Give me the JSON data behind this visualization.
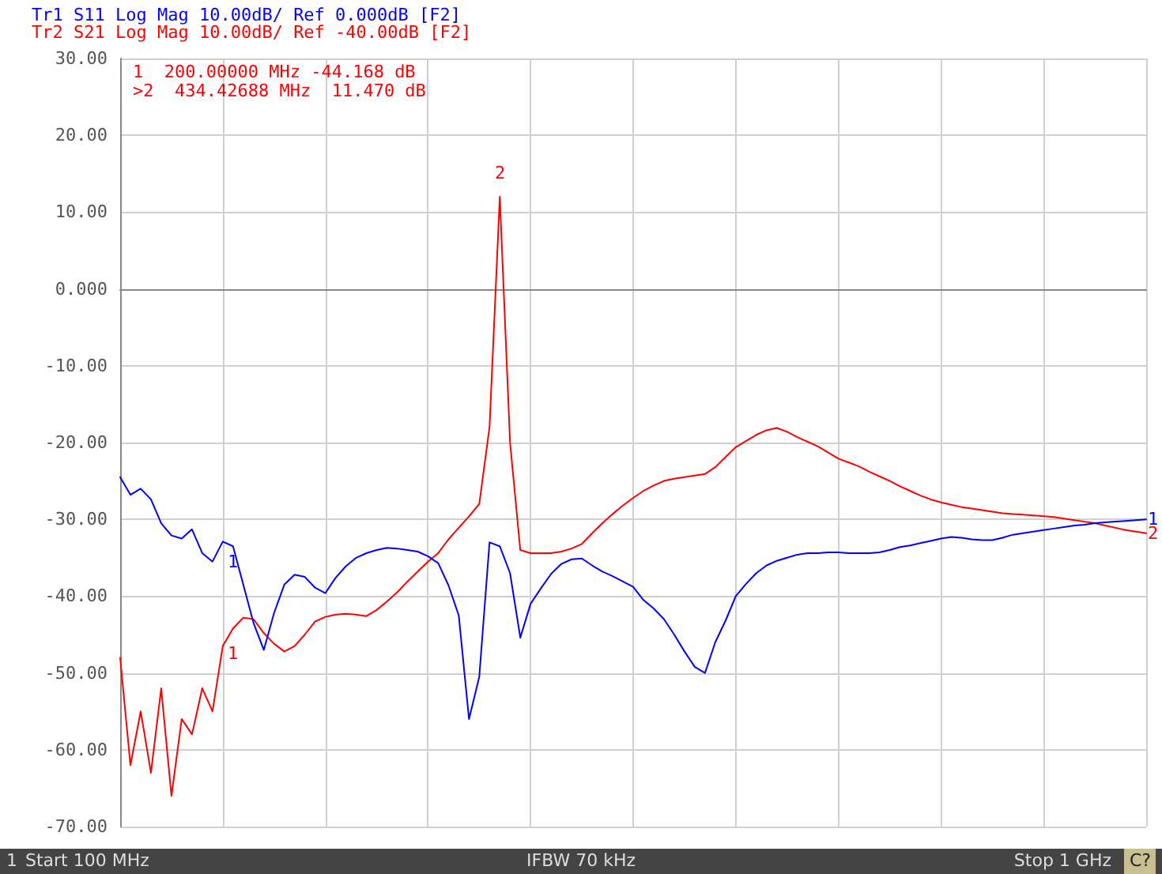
{
  "chart_data": {
    "type": "line",
    "title": "Tr1 S11 Log Mag 10.00dB/ Ref 0.000dB [F2]",
    "subtitle": "Tr2 S21 Log Mag 10.00dB/ Ref -40.00dB [F2]",
    "categories": [
      null,
      null,
      null,
      null,
      null,
      null,
      null,
      null,
      null,
      null,
      null,
      null,
      null,
      null,
      null,
      null,
      null,
      null,
      null,
      null,
      null,
      null,
      null,
      null,
      null,
      null,
      null,
      null,
      null,
      null,
      null,
      null,
      null,
      null,
      null,
      null,
      null,
      null,
      null,
      null,
      null,
      null,
      null,
      null,
      null,
      null,
      null,
      null,
      null,
      null,
      null,
      null,
      null,
      null,
      null,
      null,
      null,
      null,
      null,
      null,
      null,
      null,
      null,
      null,
      null,
      null,
      null,
      null,
      null,
      null,
      null,
      null,
      null,
      null,
      null,
      null,
      null,
      null,
      null,
      null,
      null,
      null,
      null,
      null,
      null,
      null,
      null,
      null,
      null,
      null,
      null,
      null,
      null,
      null,
      null,
      null,
      null,
      null,
      null,
      null,
      null
    ],
    "ylim": [
      -70,
      30
    ],
    "yticks": [
      {
        "value": 30,
        "label": "30.00"
      },
      {
        "value": 20,
        "label": "20.00"
      },
      {
        "value": 10,
        "label": "10.00"
      },
      {
        "value": 0,
        "label": "0.000"
      },
      {
        "value": -10,
        "label": "-10.00"
      },
      {
        "value": -20,
        "label": "-20.00"
      },
      {
        "value": -30,
        "label": "-30.00"
      },
      {
        "value": -40,
        "label": "-40.00"
      },
      {
        "value": -50,
        "label": "-50.00"
      },
      {
        "value": -60,
        "label": "-60.00"
      },
      {
        "value": -70,
        "label": "-70.00"
      }
    ],
    "tick_labels": "y",
    "grid": true,
    "legend": false,
    "line_style": "solid",
    "series": [
      {
        "name": "1",
        "color": "#0000ff",
        "values": [
          -24.5,
          -26.8,
          -26.0,
          -27.4,
          -30.5,
          -32.1,
          -32.5,
          -31.3,
          -34.4,
          -35.5,
          -32.9,
          -33.5,
          -38.5,
          -43.5,
          -47.0,
          -42.2,
          -38.5,
          -37.2,
          -37.5,
          -38.9,
          -39.6,
          -37.6,
          -36.1,
          -35.0,
          -34.4,
          -34.0,
          -33.7,
          -33.8,
          -34.0,
          -34.2,
          -34.8,
          -35.7,
          -38.6,
          -42.5,
          -56.0,
          -50.5,
          -33.0,
          -33.5,
          -37.0,
          -45.4,
          -41.0,
          -39.0,
          -37.1,
          -35.8,
          -35.2,
          -35.1,
          -36.0,
          -36.8,
          -37.4,
          -38.1,
          -38.8,
          -40.5,
          -41.6,
          -43.0,
          -45.0,
          -47.2,
          -49.2,
          -50.0,
          -46.0,
          -43.2,
          -40.0,
          -38.4,
          -37.0,
          -36.0,
          -35.4,
          -35.0,
          -34.6,
          -34.4,
          -34.4,
          -34.3,
          -34.3,
          -34.4,
          -34.4,
          -34.4,
          -34.3,
          -34.0,
          -33.6,
          -33.4,
          -33.1,
          -32.8,
          -32.5,
          -32.3,
          -32.4,
          -32.6,
          -32.7,
          -32.7,
          -32.4,
          -32.0,
          -31.8,
          -31.6,
          -31.4,
          -31.2,
          -31.0,
          -30.8,
          -30.7,
          -30.5,
          -30.4,
          -30.3,
          -30.2,
          -30.1,
          -30.0
        ]
      },
      {
        "name": "2",
        "color": "#ff0000",
        "values": [
          -48,
          -62,
          -55,
          -63,
          -52,
          -66,
          -56,
          -58,
          -52,
          -55,
          -46.5,
          -44.2,
          -42.8,
          -43.0,
          -44.8,
          -46.2,
          -47.2,
          -46.5,
          -45.0,
          -43.3,
          -42.7,
          -42.4,
          -42.3,
          -42.4,
          -42.6,
          -41.8,
          -40.7,
          -39.5,
          -38.1,
          -36.8,
          -35.5,
          -34.4,
          -32.6,
          -31.1,
          -29.6,
          -28.0,
          -18.0,
          12.0,
          -20.0,
          -34.0,
          -34.4,
          -34.4,
          -34.4,
          -34.2,
          -33.8,
          -33.2,
          -31.8,
          -30.5,
          -29.3,
          -28.2,
          -27.2,
          -26.3,
          -25.6,
          -25.0,
          -24.7,
          -24.5,
          -24.3,
          -24.1,
          -23.2,
          -21.9,
          -20.6,
          -19.8,
          -19.0,
          -18.4,
          -18.1,
          -18.6,
          -19.3,
          -19.9,
          -20.5,
          -21.3,
          -22.1,
          -22.6,
          -23.1,
          -23.8,
          -24.4,
          -25.0,
          -25.7,
          -26.3,
          -26.9,
          -27.4,
          -27.8,
          -28.1,
          -28.4,
          -28.6,
          -28.8,
          -29.0,
          -29.2,
          -29.3,
          -29.4,
          -29.5,
          -29.6,
          -29.7,
          -29.9,
          -30.1,
          -30.3,
          -30.5,
          -30.8,
          -31.1,
          -31.4,
          -31.6,
          -31.8
        ]
      }
    ],
    "annotations": [
      "1  200.00000 MHz -44.168 dB",
      ">2  434.42688 MHz  11.470 dB",
      "1",
      "Start 100 MHz",
      "IFBW 70 kHz",
      "Stop 1 GHz",
      "C?",
      "1",
      "1",
      "2"
    ]
  }
}
